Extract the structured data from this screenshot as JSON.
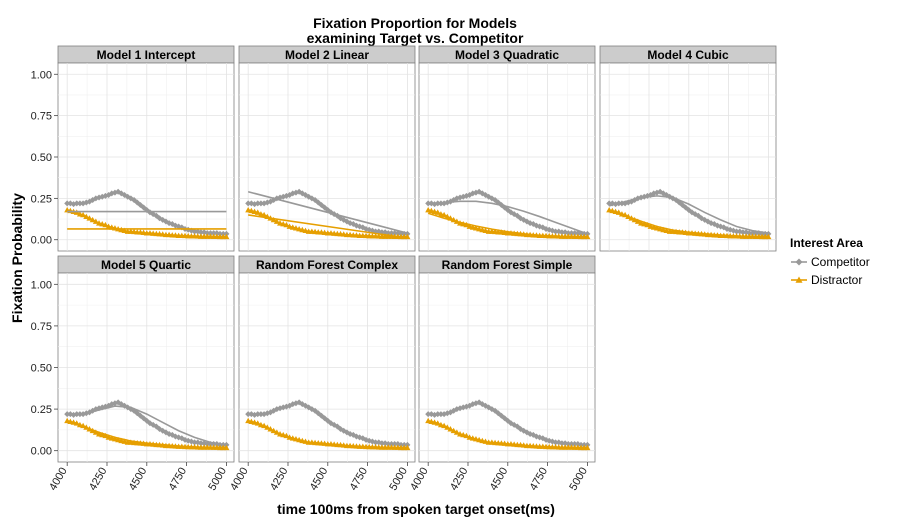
{
  "chart_data": {
    "type": "line",
    "title_line1": "Fixation Proportion for Models",
    "title_line2": "examining Target vs. Competitor",
    "xlabel": "time 100ms from spoken target onset(ms)",
    "ylabel": "Fixation Probability",
    "xlim": [
      3980,
      5010
    ],
    "ylim": [
      -0.05,
      1.05
    ],
    "xticks": [
      4000,
      4250,
      4500,
      4750,
      5000
    ],
    "yticks": [
      0.0,
      0.25,
      0.5,
      0.75,
      1.0
    ],
    "ytick_labels": [
      "0.00",
      "0.25",
      "0.50",
      "0.75",
      "1.00"
    ],
    "grid": true,
    "legend": {
      "title": "Interest Area",
      "position": "right",
      "items": [
        {
          "name": "Competitor",
          "color": "#999999",
          "marker": "diamond"
        },
        {
          "name": "Distractor",
          "color": "#E69F00",
          "marker": "triangle"
        }
      ]
    },
    "observed": {
      "x": [
        4000,
        4020,
        4040,
        4060,
        4080,
        4100,
        4120,
        4140,
        4160,
        4180,
        4200,
        4220,
        4240,
        4260,
        4280,
        4300,
        4320,
        4340,
        4360,
        4380,
        4400,
        4420,
        4440,
        4460,
        4480,
        4500,
        4520,
        4540,
        4560,
        4580,
        4600,
        4620,
        4640,
        4660,
        4680,
        4700,
        4720,
        4740,
        4760,
        4780,
        4800,
        4820,
        4840,
        4860,
        4880,
        4900,
        4920,
        4940,
        4960,
        4980,
        5000
      ],
      "competitor": [
        0.22,
        0.22,
        0.215,
        0.22,
        0.22,
        0.22,
        0.225,
        0.23,
        0.24,
        0.25,
        0.255,
        0.26,
        0.265,
        0.27,
        0.28,
        0.285,
        0.29,
        0.28,
        0.27,
        0.26,
        0.25,
        0.24,
        0.225,
        0.21,
        0.195,
        0.18,
        0.165,
        0.155,
        0.145,
        0.13,
        0.12,
        0.11,
        0.1,
        0.095,
        0.085,
        0.08,
        0.075,
        0.065,
        0.06,
        0.055,
        0.05,
        0.05,
        0.045,
        0.045,
        0.04,
        0.04,
        0.04,
        0.04,
        0.035,
        0.035,
        0.035
      ],
      "distractor": [
        0.18,
        0.175,
        0.17,
        0.165,
        0.155,
        0.15,
        0.14,
        0.13,
        0.12,
        0.11,
        0.1,
        0.095,
        0.09,
        0.08,
        0.075,
        0.07,
        0.065,
        0.06,
        0.055,
        0.05,
        0.05,
        0.048,
        0.046,
        0.045,
        0.043,
        0.04,
        0.04,
        0.038,
        0.036,
        0.035,
        0.033,
        0.03,
        0.03,
        0.028,
        0.027,
        0.025,
        0.025,
        0.024,
        0.023,
        0.022,
        0.022,
        0.021,
        0.02,
        0.02,
        0.02,
        0.02,
        0.019,
        0.019,
        0.018,
        0.018,
        0.018
      ]
    },
    "panels": [
      {
        "title": "Model 1 Intercept",
        "fit_x": [
          4000,
          5000
        ],
        "fit_competitor": [
          0.17,
          0.17
        ],
        "fit_distractor": [
          0.065,
          0.065
        ]
      },
      {
        "title": "Model 2 Linear",
        "fit_x": [
          4000,
          5000
        ],
        "fit_competitor": [
          0.29,
          0.04
        ],
        "fit_distractor": [
          0.15,
          0.01
        ]
      },
      {
        "title": "Model 3 Quadratic",
        "fit_x": [
          4000,
          4100,
          4200,
          4300,
          4400,
          4500,
          4600,
          4700,
          4800,
          4900,
          5000
        ],
        "fit_competitor": [
          0.215,
          0.225,
          0.232,
          0.232,
          0.22,
          0.2,
          0.172,
          0.14,
          0.105,
          0.07,
          0.035
        ],
        "fit_distractor": [
          0.16,
          0.13,
          0.105,
          0.083,
          0.064,
          0.048,
          0.036,
          0.026,
          0.02,
          0.017,
          0.016
        ]
      },
      {
        "title": "Model 4 Cubic",
        "fit_x": [
          4000,
          4100,
          4200,
          4300,
          4400,
          4500,
          4600,
          4700,
          4800,
          4900,
          5000
        ],
        "fit_competitor": [
          0.205,
          0.23,
          0.255,
          0.265,
          0.255,
          0.215,
          0.165,
          0.12,
          0.08,
          0.055,
          0.04
        ],
        "fit_distractor": [
          0.175,
          0.145,
          0.112,
          0.08,
          0.058,
          0.045,
          0.036,
          0.028,
          0.022,
          0.02,
          0.02
        ]
      },
      {
        "title": "Model 5 Quartic",
        "fit_x": [
          4000,
          4100,
          4200,
          4300,
          4400,
          4500,
          4600,
          4700,
          4800,
          4900,
          5000
        ],
        "fit_competitor": [
          0.215,
          0.22,
          0.245,
          0.268,
          0.26,
          0.22,
          0.17,
          0.12,
          0.08,
          0.05,
          0.035
        ],
        "fit_distractor": [
          0.178,
          0.145,
          0.11,
          0.08,
          0.058,
          0.045,
          0.036,
          0.028,
          0.022,
          0.02,
          0.018
        ]
      },
      {
        "title": "Random Forest Complex",
        "fit_x": [],
        "fit_competitor": [],
        "fit_distractor": []
      },
      {
        "title": "Random Forest Simple",
        "fit_x": [],
        "fit_competitor": [],
        "fit_distractor": []
      }
    ]
  }
}
